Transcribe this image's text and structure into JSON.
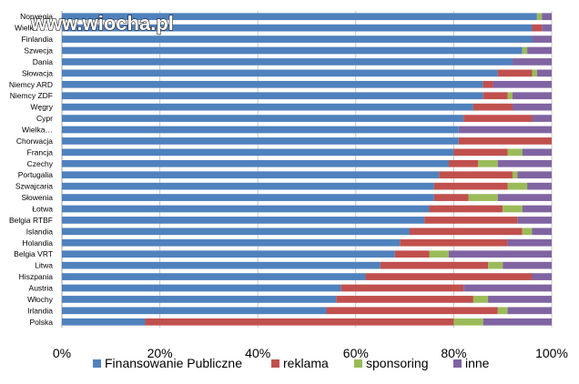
{
  "watermark": "www.wiocha.pl",
  "chart_data": {
    "type": "bar",
    "orientation": "horizontal",
    "stacked": "percent",
    "categories": [
      "Norwegia",
      "Wielka B…",
      "Finlandia",
      "Szwecja",
      "Dania",
      "Słowacja",
      "Niemcy ARD",
      "Niemcy ZDF",
      "Węgry",
      "Cypr",
      "Wielka…",
      "Chorwacja",
      "Francja",
      "Czechy",
      "Portugalia",
      "Szwajcaria",
      "Słowenia",
      "Łotwa",
      "Belgia RTBF",
      "Islandia",
      "Holandia",
      "Belgia VRT",
      "Litwa",
      "Hiszpania",
      "Austria",
      "Włochy",
      "Irlandia",
      "Polska"
    ],
    "series": [
      {
        "name": "Finansowanie Publiczne",
        "color": "#4f81bd",
        "values": [
          97,
          96,
          96,
          94,
          92,
          89,
          86,
          86,
          84,
          82,
          81,
          81,
          80,
          79,
          77,
          76,
          76,
          75,
          74,
          71,
          69,
          68,
          65,
          62,
          57,
          56,
          54,
          17
        ]
      },
      {
        "name": "reklama",
        "color": "#c0504d",
        "values": [
          0,
          2,
          0,
          0,
          0,
          7,
          2,
          5,
          8,
          14,
          0,
          19,
          11,
          6,
          15,
          15,
          7,
          15,
          19,
          23,
          22,
          7,
          22,
          34,
          25,
          28,
          35,
          63
        ]
      },
      {
        "name": "sponsoring",
        "color": "#9bbb59",
        "values": [
          1,
          0,
          0,
          1,
          0,
          1,
          0,
          1,
          0,
          0,
          0,
          0,
          3,
          4,
          1,
          4,
          6,
          4,
          0,
          2,
          0,
          4,
          3,
          0,
          0,
          3,
          2,
          6
        ]
      },
      {
        "name": "inne",
        "color": "#8064a2",
        "values": [
          2,
          2,
          4,
          5,
          8,
          3,
          12,
          8,
          8,
          4,
          19,
          0,
          6,
          11,
          7,
          5,
          11,
          6,
          7,
          4,
          9,
          21,
          10,
          4,
          18,
          13,
          9,
          14
        ]
      }
    ],
    "xticks": [
      "0%",
      "20%",
      "40%",
      "60%",
      "80%",
      "100%"
    ],
    "xlim": [
      0,
      100
    ],
    "grid": true,
    "legend": "bottom"
  }
}
